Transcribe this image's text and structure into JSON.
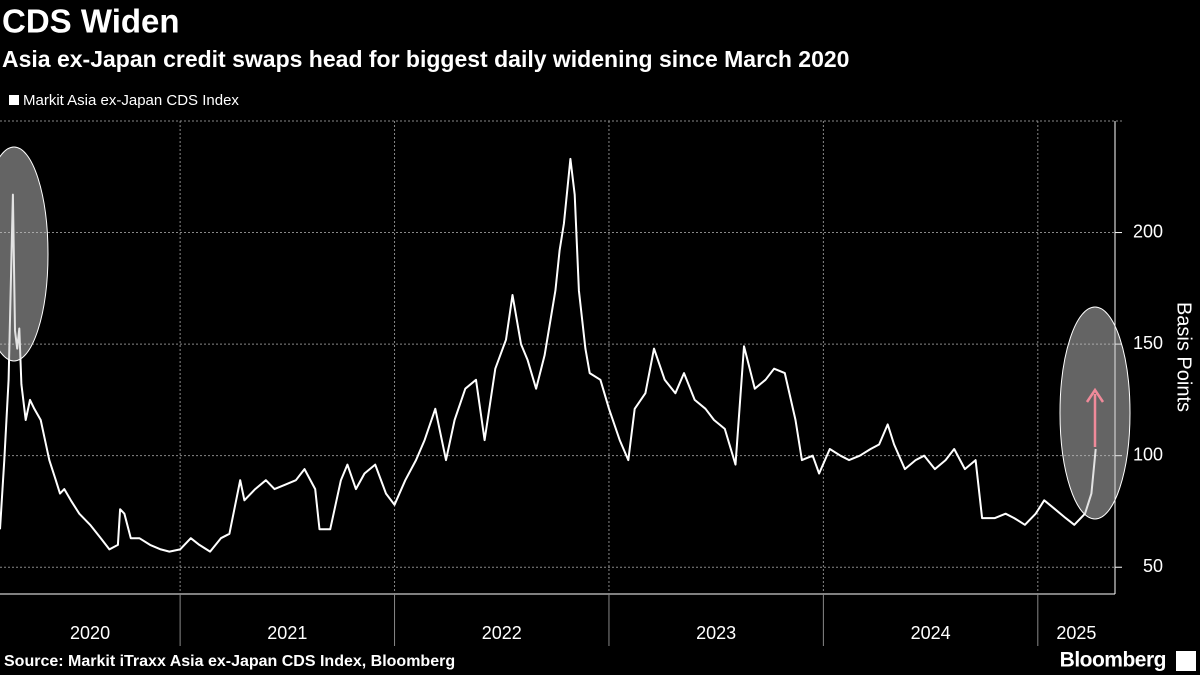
{
  "chart_data": {
    "type": "line",
    "title": "CDS Widen",
    "subtitle": "Asia ex-Japan credit swaps head for biggest daily widening since March 2020",
    "y_label": "Basis Points",
    "source": "Source: Markit iTraxx Asia ex-Japan CDS Index, Bloomberg",
    "brand": "Bloomberg",
    "x": [
      2020.16,
      2020.18,
      2020.2,
      2020.22,
      2020.23,
      2020.24,
      2020.25,
      2020.26,
      2020.28,
      2020.3,
      2020.32,
      2020.35,
      2020.37,
      2020.39,
      2020.42,
      2020.44,
      2020.46,
      2020.49,
      2020.53,
      2020.58,
      2020.63,
      2020.67,
      2020.71,
      2020.72,
      2020.74,
      2020.77,
      2020.81,
      2020.86,
      2020.91,
      2020.95,
      2021.0,
      2021.05,
      2021.09,
      2021.14,
      2021.19,
      2021.23,
      2021.28,
      2021.3,
      2021.35,
      2021.4,
      2021.44,
      2021.49,
      2021.54,
      2021.58,
      2021.63,
      2021.65,
      2021.7,
      2021.75,
      2021.78,
      2021.82,
      2021.86,
      2021.91,
      2021.96,
      2022.0,
      2022.05,
      2022.1,
      2022.14,
      2022.19,
      2022.24,
      2022.28,
      2022.33,
      2022.38,
      2022.42,
      2022.47,
      2022.52,
      2022.55,
      2022.59,
      2022.62,
      2022.66,
      2022.7,
      2022.75,
      2022.77,
      2022.79,
      2022.82,
      2022.84,
      2022.86,
      2022.89,
      2022.91,
      2022.96,
      2023.0,
      2023.05,
      2023.09,
      2023.12,
      2023.17,
      2023.21,
      2023.26,
      2023.31,
      2023.35,
      2023.4,
      2023.45,
      2023.49,
      2023.54,
      2023.59,
      2023.63,
      2023.68,
      2023.73,
      2023.77,
      2023.82,
      2023.87,
      2023.9,
      2023.95,
      2023.98,
      2024.03,
      2024.08,
      2024.12,
      2024.17,
      2024.22,
      2024.26,
      2024.3,
      2024.33,
      2024.38,
      2024.43,
      2024.47,
      2024.52,
      2024.57,
      2024.61,
      2024.66,
      2024.71,
      2024.74,
      2024.8,
      2024.85,
      2024.89,
      2024.94,
      2024.99,
      2025.03,
      2025.08,
      2025.13,
      2025.17,
      2025.22,
      2025.25,
      2025.27
    ],
    "series": [
      {
        "name": "Markit Asia ex-Japan CDS Index",
        "color": "#ffffff",
        "values": [
          67,
          98,
          134,
          217,
          156,
          148,
          157,
          132,
          116,
          125,
          121,
          116,
          107,
          98,
          89,
          83,
          85,
          80,
          74,
          69,
          63,
          58,
          60,
          76,
          74,
          63,
          63,
          60,
          58,
          57,
          58,
          63,
          60,
          57,
          63,
          65,
          89,
          80,
          85,
          89,
          85,
          87,
          89,
          94,
          85,
          67,
          67,
          89,
          96,
          85,
          92,
          96,
          83,
          78,
          89,
          98,
          107,
          121,
          98,
          116,
          130,
          134,
          107,
          139,
          152,
          172,
          150,
          143,
          130,
          145,
          174,
          192,
          204,
          233,
          217,
          174,
          148,
          137,
          134,
          121,
          107,
          98,
          121,
          128,
          148,
          134,
          128,
          137,
          125,
          121,
          116,
          112,
          96,
          149,
          130,
          134,
          139,
          137,
          116,
          98,
          100,
          92,
          103,
          100,
          98,
          100,
          103,
          105,
          114,
          105,
          94,
          98,
          100,
          94,
          98,
          103,
          94,
          98,
          72,
          72,
          74,
          72,
          69,
          74,
          80,
          76,
          72,
          69,
          74,
          83,
          103
        ]
      }
    ],
    "xlim": [
      2020.16,
      2025.36
    ],
    "xticks": [
      2020,
      2021,
      2022,
      2023,
      2024,
      2025
    ],
    "ylim": [
      38,
      250
    ],
    "yticks": [
      50,
      100,
      150,
      200
    ],
    "grid": true
  }
}
